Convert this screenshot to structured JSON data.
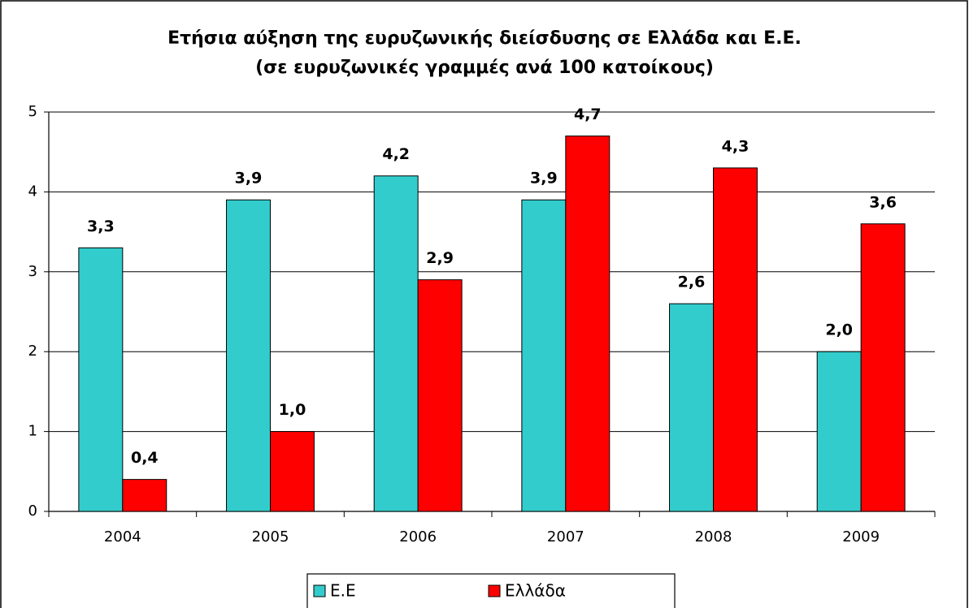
{
  "chart_data": {
    "type": "bar",
    "title": "Ετήσια αύξηση της ευρυζωνικής διείσδυσης σε Ελλάδα και Ε.Ε.",
    "subtitle": "(σε ευρυζωνικές γραμμές ανά 100 κατοίκους)",
    "categories": [
      "2004",
      "2005",
      "2006",
      "2007",
      "2008",
      "2009"
    ],
    "series": [
      {
        "name": "Ε.Ε",
        "color": "#33cccc",
        "values": [
          3.3,
          3.9,
          4.2,
          3.9,
          2.6,
          2.0
        ],
        "value_labels": [
          "3,3",
          "3,9",
          "4,2",
          "3,9",
          "2,6",
          "2,0"
        ]
      },
      {
        "name": "Ελλάδα",
        "color": "#ff0000",
        "values": [
          0.4,
          1.0,
          2.9,
          4.7,
          4.3,
          3.6
        ],
        "value_labels": [
          "0,4",
          "1,0",
          "2,9",
          "4,7",
          "4,3",
          "3,6"
        ]
      }
    ],
    "ylim": [
      0,
      5
    ],
    "yticks": [
      0,
      1,
      2,
      3,
      4,
      5
    ],
    "grid": true,
    "legend": "bottom"
  }
}
